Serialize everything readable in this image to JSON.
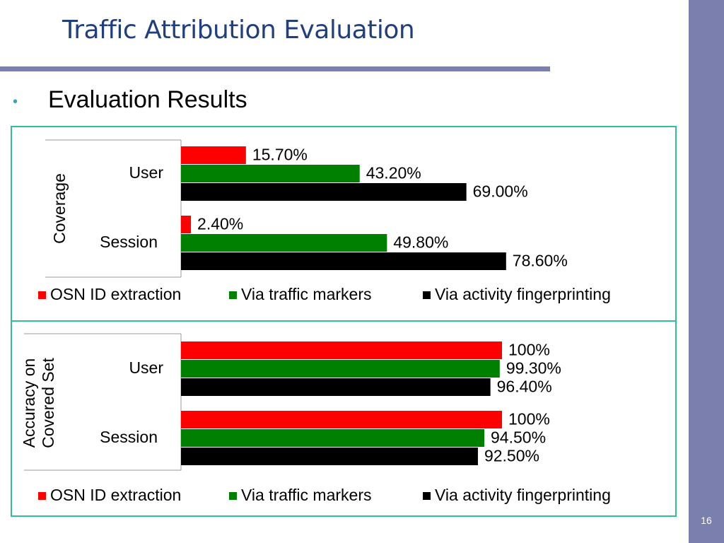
{
  "slide": {
    "title": "Traffic Attribution Evaluation",
    "bullet": "Evaluation Results",
    "page_number": "16"
  },
  "colors": {
    "series": [
      "#ff0000",
      "#008000",
      "#000000"
    ],
    "frame": "#2fbf9a",
    "accent": "#7b7fae",
    "title": "#1f3f7f"
  },
  "chart_data": [
    {
      "type": "bar",
      "orientation": "horizontal",
      "ylabel": "Coverage",
      "categories": [
        "User",
        "Session"
      ],
      "series": [
        {
          "name": "OSN ID extraction",
          "values": [
            15.7,
            2.4
          ],
          "labels": [
            "15.70%",
            "2.40%"
          ]
        },
        {
          "name": "Via traffic markers",
          "values": [
            43.2,
            49.8
          ],
          "labels": [
            "43.20%",
            "49.80%"
          ]
        },
        {
          "name": "Via activity fingerprinting",
          "values": [
            69.0,
            78.6
          ],
          "labels": [
            "69.00%",
            "78.60%"
          ]
        }
      ],
      "xlim": [
        0,
        100
      ],
      "legend": "bottom"
    },
    {
      "type": "bar",
      "orientation": "horizontal",
      "ylabel": "Accuracy on Covered Set",
      "ylabel_lines": [
        "Accuracy on",
        "Covered Set"
      ],
      "categories": [
        "User",
        "Session"
      ],
      "series": [
        {
          "name": "OSN ID extraction",
          "values": [
            100,
            100
          ],
          "labels": [
            "100%",
            "100%"
          ]
        },
        {
          "name": "Via traffic markers",
          "values": [
            99.3,
            94.5
          ],
          "labels": [
            "99.30%",
            "94.50%"
          ]
        },
        {
          "name": "Via activity fingerprinting",
          "values": [
            96.4,
            92.5
          ],
          "labels": [
            "96.40%",
            "92.50%"
          ]
        }
      ],
      "xlim": [
        0,
        100
      ],
      "legend": "bottom"
    }
  ]
}
